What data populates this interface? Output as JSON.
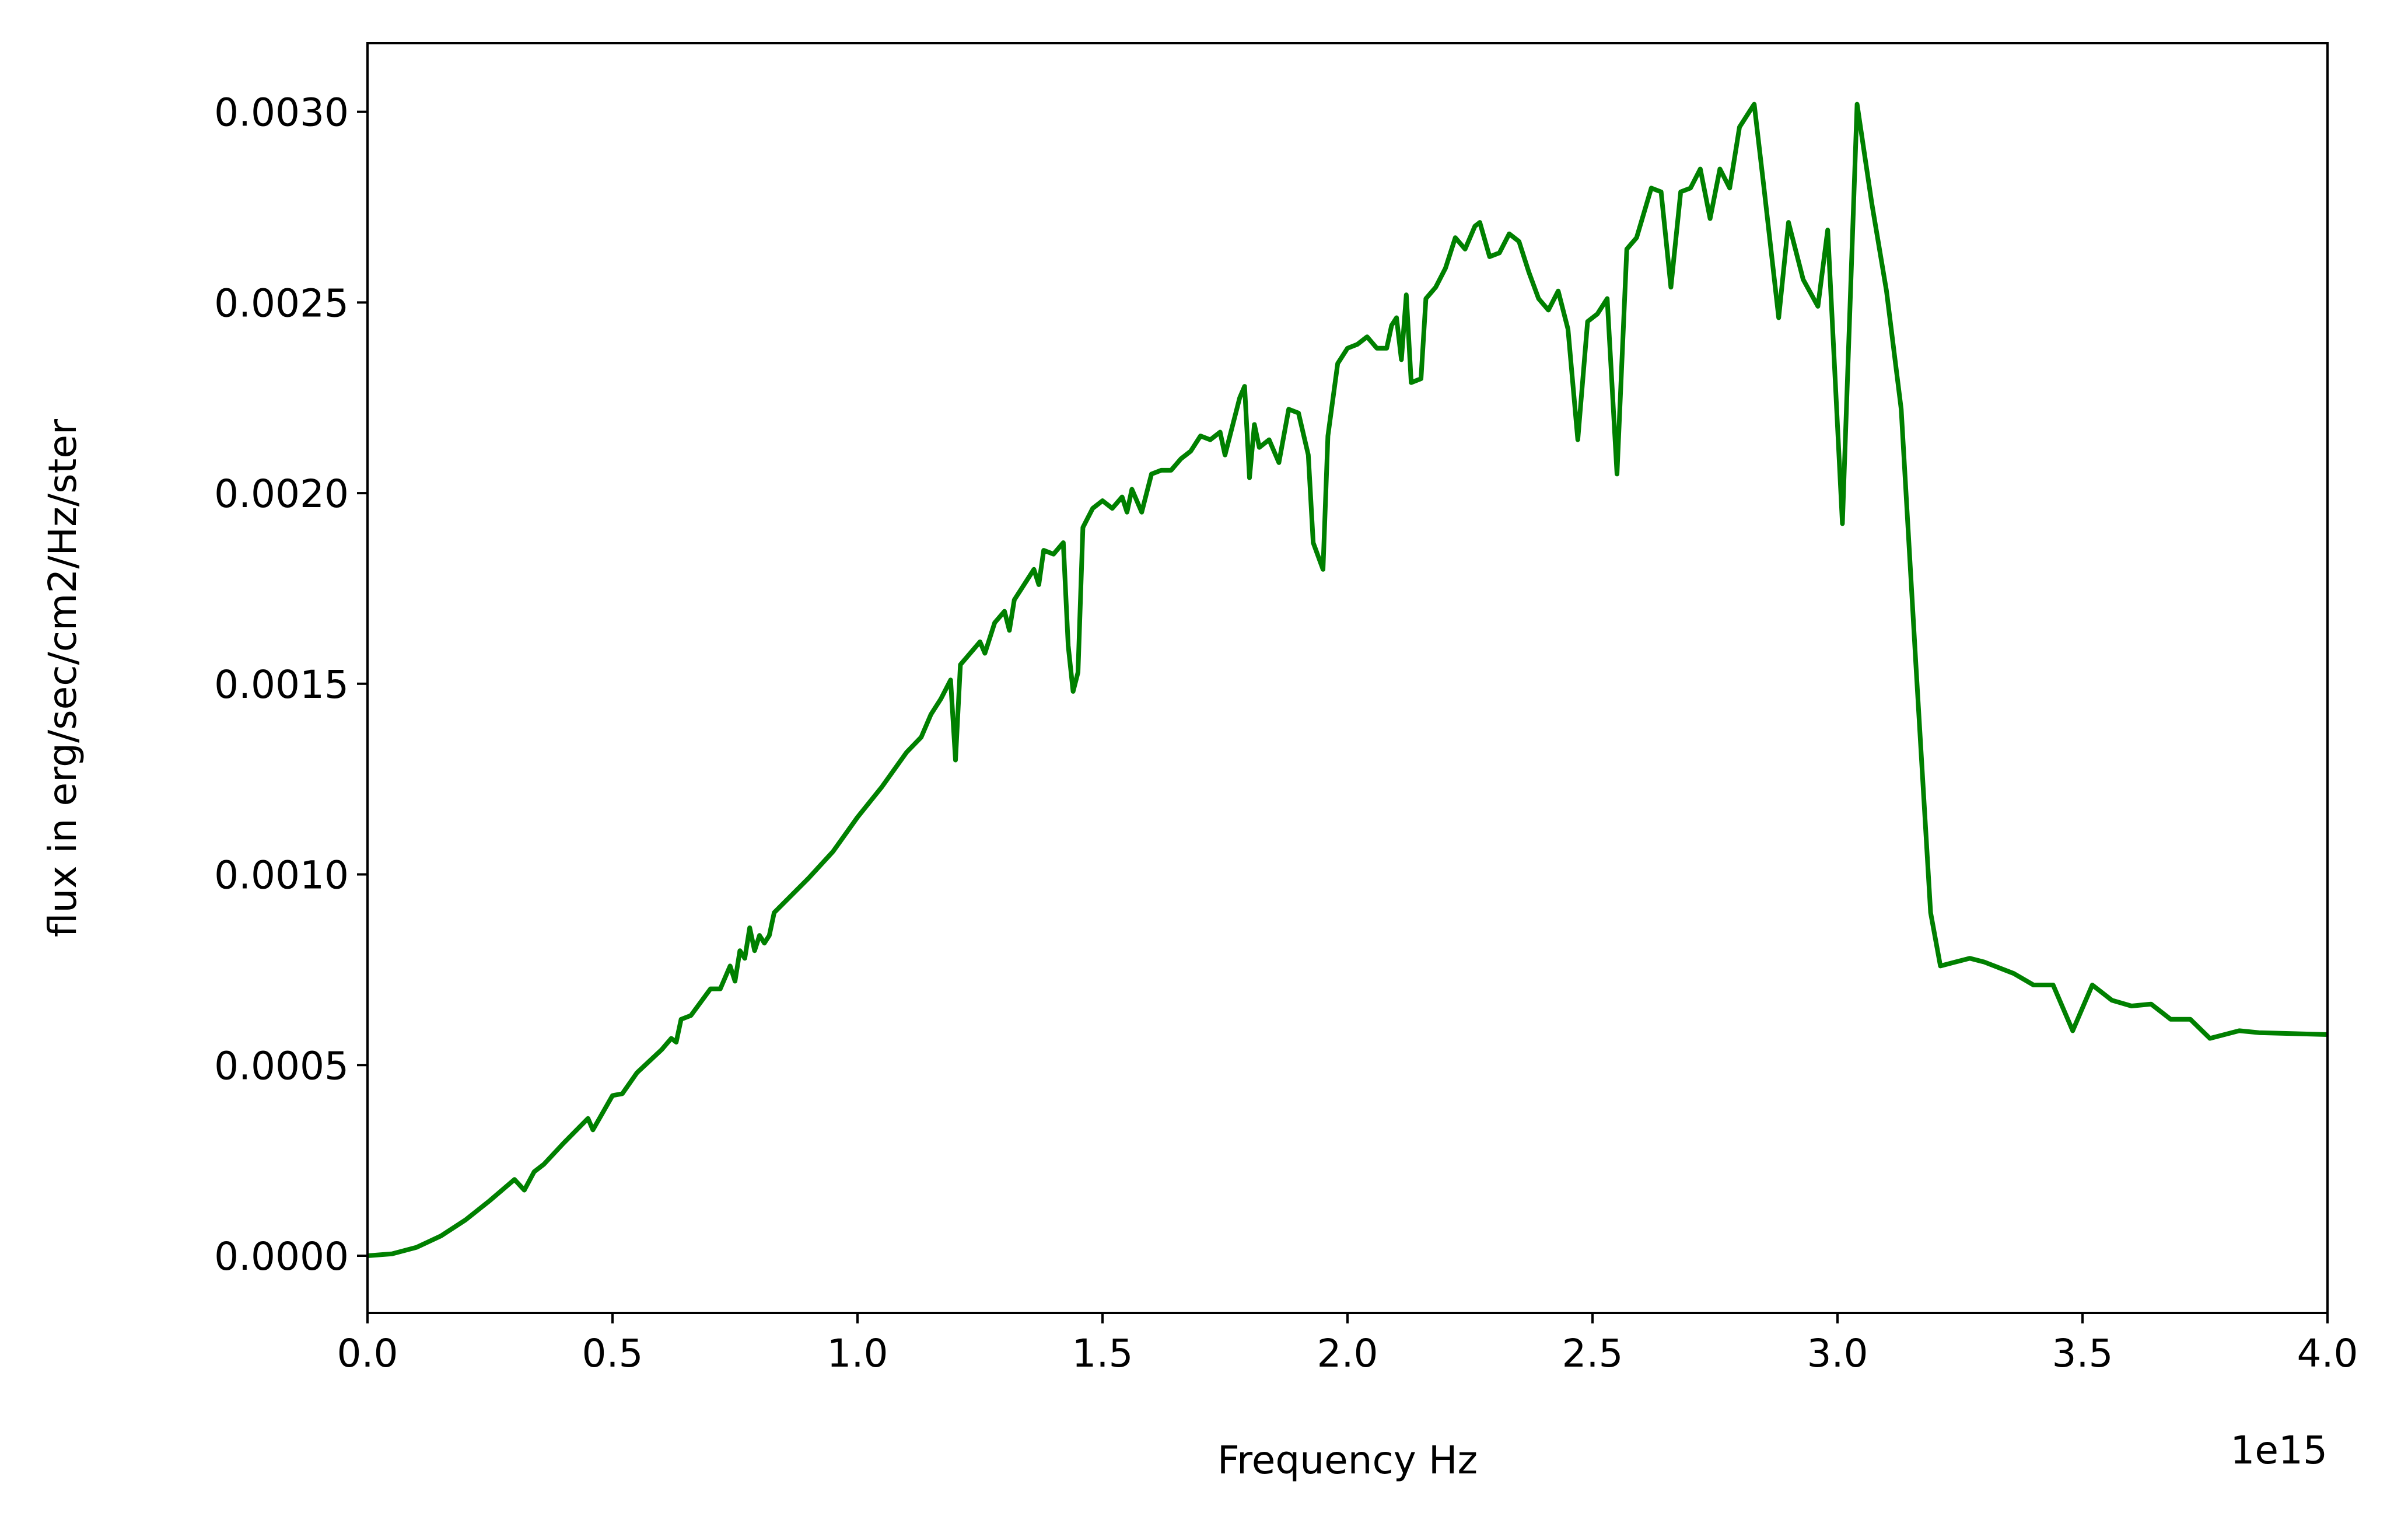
{
  "chart_data": {
    "type": "line",
    "title": "",
    "xlabel": "Frequency Hz",
    "ylabel": "flux in erg/sec/cm2/Hz/ster",
    "x_offset_label": "1e15",
    "x_scale_factor": 1000000000000000.0,
    "xlim": [
      0,
      4.0
    ],
    "ylim": [
      -0.00015,
      0.00318
    ],
    "x_ticks": [
      0.0,
      0.5,
      1.0,
      1.5,
      2.0,
      2.5,
      3.0,
      3.5,
      4.0
    ],
    "x_tick_labels": [
      "0.0",
      "0.5",
      "1.0",
      "1.5",
      "2.0",
      "2.5",
      "3.0",
      "3.5",
      "4.0"
    ],
    "y_ticks": [
      0.0,
      0.0005,
      0.001,
      0.0015,
      0.002,
      0.0025,
      0.003
    ],
    "y_tick_labels": [
      "0.0000",
      "0.0005",
      "0.0010",
      "0.0015",
      "0.0020",
      "0.0025",
      "0.0030"
    ],
    "grid": false,
    "legend": "none",
    "series": [
      {
        "color": "#008000",
        "points": [
          [
            0.0,
            0.0
          ],
          [
            0.05,
            5e-06
          ],
          [
            0.1,
            2.2e-05
          ],
          [
            0.15,
            5.2e-05
          ],
          [
            0.2,
            9.4e-05
          ],
          [
            0.25,
            0.000145
          ],
          [
            0.3,
            0.0002
          ],
          [
            0.32,
            0.000172
          ],
          [
            0.34,
            0.00022
          ],
          [
            0.36,
            0.00024
          ],
          [
            0.4,
            0.000295
          ],
          [
            0.45,
            0.00036
          ],
          [
            0.46,
            0.00033
          ],
          [
            0.5,
            0.00042
          ],
          [
            0.52,
            0.000425
          ],
          [
            0.55,
            0.00048
          ],
          [
            0.6,
            0.00054
          ],
          [
            0.62,
            0.00057
          ],
          [
            0.63,
            0.00056
          ],
          [
            0.64,
            0.00062
          ],
          [
            0.66,
            0.00063
          ],
          [
            0.7,
            0.0007
          ],
          [
            0.72,
            0.0007
          ],
          [
            0.74,
            0.00076
          ],
          [
            0.75,
            0.00072
          ],
          [
            0.76,
            0.0008
          ],
          [
            0.77,
            0.00078
          ],
          [
            0.78,
            0.00086
          ],
          [
            0.79,
            0.0008
          ],
          [
            0.8,
            0.00084
          ],
          [
            0.81,
            0.00082
          ],
          [
            0.82,
            0.00084
          ],
          [
            0.83,
            0.0009
          ],
          [
            0.9,
            0.00099
          ],
          [
            0.95,
            0.00106
          ],
          [
            1.0,
            0.00115
          ],
          [
            1.05,
            0.00123
          ],
          [
            1.1,
            0.00132
          ],
          [
            1.13,
            0.00136
          ],
          [
            1.15,
            0.00142
          ],
          [
            1.17,
            0.00146
          ],
          [
            1.19,
            0.00151
          ],
          [
            1.2,
            0.0013
          ],
          [
            1.21,
            0.00155
          ],
          [
            1.23,
            0.00158
          ],
          [
            1.25,
            0.00161
          ],
          [
            1.26,
            0.00158
          ],
          [
            1.28,
            0.00166
          ],
          [
            1.3,
            0.00169
          ],
          [
            1.31,
            0.00164
          ],
          [
            1.32,
            0.00172
          ],
          [
            1.34,
            0.00176
          ],
          [
            1.36,
            0.0018
          ],
          [
            1.37,
            0.00176
          ],
          [
            1.38,
            0.00185
          ],
          [
            1.4,
            0.00184
          ],
          [
            1.42,
            0.00187
          ],
          [
            1.43,
            0.0016
          ],
          [
            1.44,
            0.00148
          ],
          [
            1.45,
            0.00153
          ],
          [
            1.46,
            0.00191
          ],
          [
            1.48,
            0.00196
          ],
          [
            1.5,
            0.00198
          ],
          [
            1.52,
            0.00196
          ],
          [
            1.54,
            0.00199
          ],
          [
            1.55,
            0.00195
          ],
          [
            1.56,
            0.00201
          ],
          [
            1.58,
            0.00195
          ],
          [
            1.6,
            0.00205
          ],
          [
            1.62,
            0.00206
          ],
          [
            1.64,
            0.00206
          ],
          [
            1.66,
            0.00209
          ],
          [
            1.68,
            0.00211
          ],
          [
            1.7,
            0.00215
          ],
          [
            1.72,
            0.00214
          ],
          [
            1.74,
            0.00216
          ],
          [
            1.75,
            0.0021
          ],
          [
            1.77,
            0.0022
          ],
          [
            1.78,
            0.00225
          ],
          [
            1.79,
            0.00228
          ],
          [
            1.8,
            0.00204
          ],
          [
            1.81,
            0.00218
          ],
          [
            1.82,
            0.00212
          ],
          [
            1.84,
            0.00214
          ],
          [
            1.86,
            0.00208
          ],
          [
            1.88,
            0.00222
          ],
          [
            1.9,
            0.00221
          ],
          [
            1.92,
            0.0021
          ],
          [
            1.93,
            0.00187
          ],
          [
            1.95,
            0.0018
          ],
          [
            1.96,
            0.00215
          ],
          [
            1.98,
            0.00234
          ],
          [
            2.0,
            0.00238
          ],
          [
            2.02,
            0.00239
          ],
          [
            2.04,
            0.00241
          ],
          [
            2.06,
            0.00238
          ],
          [
            2.08,
            0.00238
          ],
          [
            2.09,
            0.00244
          ],
          [
            2.1,
            0.00246
          ],
          [
            2.11,
            0.00235
          ],
          [
            2.12,
            0.00252
          ],
          [
            2.13,
            0.00229
          ],
          [
            2.15,
            0.0023
          ],
          [
            2.16,
            0.00251
          ],
          [
            2.18,
            0.00254
          ],
          [
            2.2,
            0.00259
          ],
          [
            2.22,
            0.00267
          ],
          [
            2.24,
            0.00264
          ],
          [
            2.26,
            0.0027
          ],
          [
            2.27,
            0.00271
          ],
          [
            2.29,
            0.00262
          ],
          [
            2.31,
            0.00263
          ],
          [
            2.33,
            0.00268
          ],
          [
            2.35,
            0.00266
          ],
          [
            2.37,
            0.00258
          ],
          [
            2.39,
            0.00251
          ],
          [
            2.41,
            0.00248
          ],
          [
            2.43,
            0.00253
          ],
          [
            2.45,
            0.00243
          ],
          [
            2.47,
            0.00214
          ],
          [
            2.49,
            0.00245
          ],
          [
            2.51,
            0.00247
          ],
          [
            2.53,
            0.00251
          ],
          [
            2.55,
            0.00205
          ],
          [
            2.57,
            0.00264
          ],
          [
            2.59,
            0.00267
          ],
          [
            2.62,
            0.0028
          ],
          [
            2.64,
            0.00279
          ],
          [
            2.66,
            0.00254
          ],
          [
            2.68,
            0.00279
          ],
          [
            2.7,
            0.0028
          ],
          [
            2.72,
            0.00285
          ],
          [
            2.74,
            0.00272
          ],
          [
            2.76,
            0.00285
          ],
          [
            2.78,
            0.0028
          ],
          [
            2.8,
            0.00296
          ],
          [
            2.83,
            0.00302
          ],
          [
            2.85,
            0.0028
          ],
          [
            2.88,
            0.00246
          ],
          [
            2.9,
            0.00271
          ],
          [
            2.93,
            0.00256
          ],
          [
            2.96,
            0.00249
          ],
          [
            2.98,
            0.00269
          ],
          [
            3.01,
            0.00192
          ],
          [
            3.04,
            0.00302
          ],
          [
            3.07,
            0.00276
          ],
          [
            3.1,
            0.00253
          ],
          [
            3.13,
            0.00222
          ],
          [
            3.16,
            0.00155
          ],
          [
            3.19,
            0.0009
          ],
          [
            3.21,
            0.00076
          ],
          [
            3.24,
            0.00077
          ],
          [
            3.27,
            0.00078
          ],
          [
            3.3,
            0.00077
          ],
          [
            3.36,
            0.00074
          ],
          [
            3.4,
            0.00071
          ],
          [
            3.44,
            0.00071
          ],
          [
            3.48,
            0.00059
          ],
          [
            3.52,
            0.00071
          ],
          [
            3.56,
            0.00067
          ],
          [
            3.6,
            0.000655
          ],
          [
            3.64,
            0.00066
          ],
          [
            3.68,
            0.00062
          ],
          [
            3.72,
            0.00062
          ],
          [
            3.76,
            0.00057
          ],
          [
            3.82,
            0.00059
          ],
          [
            3.86,
            0.000585
          ],
          [
            4.0,
            0.00058
          ]
        ]
      }
    ]
  }
}
